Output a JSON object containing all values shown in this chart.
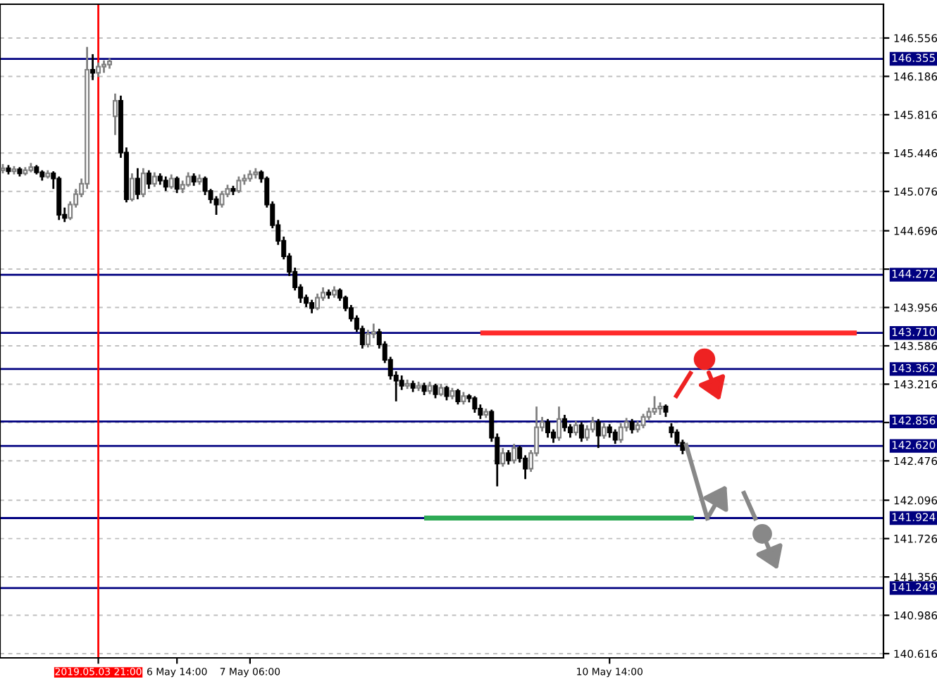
{
  "chart_data": {
    "type": "candlestick",
    "categories": [
      null,
      null,
      null,
      null,
      null,
      null,
      null,
      null,
      null,
      null,
      null,
      null,
      null,
      null,
      null,
      null,
      null,
      "2019.05.03 21:00",
      null,
      null,
      null,
      null,
      null,
      null,
      null,
      null,
      null,
      null,
      null,
      null,
      null,
      "6 May 14:00",
      null,
      null,
      null,
      null,
      null,
      null,
      null,
      null,
      null,
      null,
      null,
      null,
      "7 May 06:00",
      null,
      null,
      null,
      null,
      null,
      null,
      null,
      null,
      null,
      null,
      null,
      null,
      null,
      null,
      null,
      null,
      null,
      null,
      null,
      null,
      null,
      null,
      null,
      null,
      null,
      null,
      null,
      null,
      null,
      null,
      null,
      null,
      null,
      null,
      null,
      null,
      null,
      null,
      null,
      null,
      null,
      null,
      null,
      null,
      null,
      null,
      null,
      null,
      null,
      null,
      null,
      null,
      null,
      null,
      null,
      null,
      null,
      null,
      null,
      null,
      null,
      null,
      null,
      "10 May 14:00",
      null,
      null,
      null,
      null,
      null,
      null,
      null,
      null,
      null,
      null,
      null,
      null,
      null,
      null,
      null,
      null,
      null,
      null,
      null,
      null,
      null,
      null,
      null,
      null,
      null,
      null,
      null,
      null,
      null,
      null,
      null,
      null,
      null,
      null,
      null,
      null,
      null,
      null,
      null,
      null,
      null,
      null,
      null,
      null,
      null,
      null,
      null,
      null
    ],
    "ohlc": [
      [
        145.28,
        145.34,
        145.25,
        145.3
      ],
      [
        145.3,
        145.33,
        145.24,
        145.27
      ],
      [
        145.27,
        145.32,
        145.24,
        145.29
      ],
      [
        145.29,
        145.31,
        145.22,
        145.25
      ],
      [
        145.25,
        145.31,
        145.23,
        145.28
      ],
      [
        145.28,
        145.35,
        145.26,
        145.31
      ],
      [
        145.31,
        145.33,
        145.24,
        145.26
      ],
      [
        145.26,
        145.28,
        145.18,
        145.22
      ],
      [
        145.22,
        145.28,
        145.2,
        145.25
      ],
      [
        145.25,
        145.27,
        145.1,
        145.2
      ],
      [
        145.2,
        145.22,
        144.8,
        144.85
      ],
      [
        144.85,
        144.92,
        144.78,
        144.82
      ],
      [
        144.82,
        144.98,
        144.8,
        144.95
      ],
      [
        144.95,
        145.1,
        144.92,
        145.05
      ],
      [
        145.05,
        145.2,
        145.02,
        145.15
      ],
      [
        145.15,
        146.47,
        145.1,
        146.25
      ],
      [
        146.25,
        146.4,
        146.15,
        146.22
      ],
      [
        146.22,
        146.32,
        146.18,
        146.28
      ],
      [
        146.28,
        146.34,
        146.22,
        146.3
      ],
      [
        146.3,
        146.36,
        146.26,
        146.33
      ],
      [
        145.8,
        146.02,
        145.62,
        145.95
      ],
      [
        145.95,
        146.0,
        145.4,
        145.45
      ],
      [
        145.45,
        145.5,
        144.97,
        145.0
      ],
      [
        145.0,
        145.25,
        144.98,
        145.2
      ],
      [
        145.2,
        145.3,
        145.0,
        145.05
      ],
      [
        145.05,
        145.3,
        145.02,
        145.25
      ],
      [
        145.25,
        145.28,
        145.1,
        145.15
      ],
      [
        145.15,
        145.26,
        145.12,
        145.22
      ],
      [
        145.22,
        145.25,
        145.14,
        145.18
      ],
      [
        145.18,
        145.22,
        145.08,
        145.12
      ],
      [
        145.12,
        145.24,
        145.1,
        145.2
      ],
      [
        145.2,
        145.22,
        145.06,
        145.1
      ],
      [
        145.1,
        145.18,
        145.06,
        145.14
      ],
      [
        145.14,
        145.26,
        145.12,
        145.22
      ],
      [
        145.22,
        145.25,
        145.13,
        145.17
      ],
      [
        145.17,
        145.24,
        145.14,
        145.2
      ],
      [
        145.2,
        145.22,
        145.04,
        145.08
      ],
      [
        145.08,
        145.1,
        144.96,
        145.0
      ],
      [
        145.0,
        145.03,
        144.85,
        144.95
      ],
      [
        144.95,
        145.08,
        144.92,
        145.05
      ],
      [
        145.05,
        145.14,
        145.02,
        145.1
      ],
      [
        145.1,
        145.13,
        145.04,
        145.08
      ],
      [
        145.08,
        145.22,
        145.06,
        145.18
      ],
      [
        145.18,
        145.24,
        145.14,
        145.2
      ],
      [
        145.2,
        145.28,
        145.17,
        145.24
      ],
      [
        145.24,
        145.3,
        145.2,
        145.26
      ],
      [
        145.26,
        145.28,
        145.16,
        145.2
      ],
      [
        145.2,
        145.22,
        144.92,
        144.95
      ],
      [
        144.95,
        144.98,
        144.72,
        144.75
      ],
      [
        144.75,
        144.8,
        144.56,
        144.6
      ],
      [
        144.6,
        144.64,
        144.42,
        144.45
      ],
      [
        144.45,
        144.48,
        144.26,
        144.3
      ],
      [
        144.3,
        144.34,
        144.12,
        144.15
      ],
      [
        144.15,
        144.18,
        144.0,
        144.05
      ],
      [
        144.05,
        144.08,
        143.96,
        144.0
      ],
      [
        144.0,
        144.03,
        143.9,
        143.95
      ],
      [
        143.95,
        144.09,
        143.93,
        144.05
      ],
      [
        144.05,
        144.15,
        144.02,
        144.1
      ],
      [
        144.1,
        144.13,
        144.04,
        144.08
      ],
      [
        144.08,
        144.16,
        144.05,
        144.12
      ],
      [
        144.12,
        144.14,
        144.02,
        144.05
      ],
      [
        144.05,
        144.07,
        143.92,
        143.95
      ],
      [
        143.95,
        143.98,
        143.82,
        143.85
      ],
      [
        143.85,
        143.88,
        143.72,
        143.75
      ],
      [
        143.75,
        143.78,
        143.56,
        143.6
      ],
      [
        143.6,
        143.74,
        143.57,
        143.7
      ],
      [
        143.7,
        143.8,
        143.66,
        143.72
      ],
      [
        143.72,
        143.75,
        143.56,
        143.6
      ],
      [
        143.6,
        143.63,
        143.42,
        143.45
      ],
      [
        143.45,
        143.48,
        143.26,
        143.3
      ],
      [
        143.3,
        143.34,
        143.05,
        143.25
      ],
      [
        143.25,
        143.3,
        143.16,
        143.2
      ],
      [
        143.2,
        143.26,
        143.17,
        143.22
      ],
      [
        143.22,
        143.25,
        143.14,
        143.18
      ],
      [
        143.18,
        143.24,
        143.15,
        143.2
      ],
      [
        143.2,
        143.23,
        143.11,
        143.15
      ],
      [
        143.15,
        143.24,
        143.12,
        143.2
      ],
      [
        143.2,
        143.22,
        143.08,
        143.12
      ],
      [
        143.12,
        143.22,
        143.1,
        143.18
      ],
      [
        143.18,
        143.2,
        143.06,
        143.1
      ],
      [
        143.1,
        143.18,
        143.07,
        143.15
      ],
      [
        143.15,
        143.17,
        143.02,
        143.05
      ],
      [
        143.05,
        143.14,
        143.02,
        143.1
      ],
      [
        143.1,
        143.12,
        143.04,
        143.08
      ],
      [
        143.08,
        143.1,
        142.94,
        142.98
      ],
      [
        142.98,
        143.02,
        142.88,
        142.92
      ],
      [
        142.92,
        142.98,
        142.89,
        142.95
      ],
      [
        142.95,
        142.97,
        142.66,
        142.7
      ],
      [
        142.7,
        142.74,
        142.23,
        142.45
      ],
      [
        142.45,
        142.6,
        142.42,
        142.55
      ],
      [
        142.55,
        142.58,
        142.44,
        142.48
      ],
      [
        142.48,
        142.64,
        142.45,
        142.6
      ],
      [
        142.6,
        142.62,
        142.46,
        142.5
      ],
      [
        142.5,
        142.53,
        142.3,
        142.4
      ],
      [
        142.4,
        142.58,
        142.37,
        142.55
      ],
      [
        142.55,
        143.0,
        142.52,
        142.8
      ],
      [
        142.8,
        142.9,
        142.76,
        142.85
      ],
      [
        142.85,
        142.88,
        142.7,
        142.75
      ],
      [
        142.75,
        142.78,
        142.65,
        142.7
      ],
      [
        142.7,
        143.0,
        142.67,
        142.88
      ],
      [
        142.88,
        142.92,
        142.76,
        142.8
      ],
      [
        142.8,
        142.83,
        142.7,
        142.75
      ],
      [
        142.75,
        142.86,
        142.72,
        142.82
      ],
      [
        142.82,
        142.85,
        142.66,
        142.7
      ],
      [
        142.7,
        142.82,
        142.67,
        142.78
      ],
      [
        142.78,
        142.9,
        142.75,
        142.85
      ],
      [
        142.85,
        142.88,
        142.6,
        142.72
      ],
      [
        142.72,
        142.84,
        142.69,
        142.8
      ],
      [
        142.8,
        142.83,
        142.7,
        142.75
      ],
      [
        142.75,
        142.78,
        142.64,
        142.68
      ],
      [
        142.68,
        142.84,
        142.65,
        142.8
      ],
      [
        142.8,
        142.89,
        142.76,
        142.85
      ],
      [
        142.85,
        142.88,
        142.74,
        142.78
      ],
      [
        142.78,
        142.86,
        142.75,
        142.82
      ],
      [
        142.82,
        142.93,
        142.79,
        142.9
      ],
      [
        142.9,
        142.99,
        142.87,
        142.95
      ],
      [
        142.95,
        143.1,
        142.92,
        142.98
      ],
      [
        142.98,
        143.04,
        142.92,
        143.0
      ],
      [
        143.0,
        143.02,
        142.9,
        142.95
      ],
      [
        142.8,
        142.84,
        142.7,
        142.75
      ],
      [
        142.75,
        142.78,
        142.62,
        142.65
      ],
      [
        142.65,
        142.68,
        142.54,
        142.58
      ],
      null,
      null,
      null,
      null,
      null,
      null,
      null,
      null,
      null,
      null,
      null,
      null,
      null,
      null,
      null,
      null,
      null,
      null,
      null,
      null,
      null,
      null,
      null,
      null,
      null,
      null,
      null,
      null,
      null,
      null,
      null,
      null,
      null,
      null,
      null
    ],
    "series": [
      {
        "type": "line",
        "color": "#ff2a2a",
        "values": [
          null,
          null,
          null,
          null,
          null,
          null,
          null,
          null,
          null,
          null,
          null,
          null,
          null,
          null,
          null,
          null,
          null,
          null,
          null,
          null,
          null,
          null,
          null,
          null,
          null,
          null,
          null,
          null,
          null,
          null,
          null,
          null,
          null,
          null,
          null,
          null,
          null,
          null,
          null,
          null,
          null,
          null,
          null,
          null,
          null,
          null,
          null,
          null,
          null,
          null,
          null,
          null,
          null,
          null,
          null,
          null,
          null,
          null,
          null,
          null,
          null,
          null,
          null,
          null,
          null,
          null,
          null,
          null,
          null,
          null,
          null,
          null,
          null,
          null,
          null,
          null,
          null,
          null,
          null,
          null,
          null,
          null,
          null,
          null,
          null,
          143.71,
          143.71,
          143.71,
          143.71,
          143.71,
          143.71,
          143.71,
          143.71,
          143.71,
          143.71,
          143.71,
          143.71,
          143.71,
          143.71,
          143.71,
          143.71,
          143.71,
          143.71,
          143.71,
          143.71,
          143.71,
          143.71,
          143.71,
          143.71,
          143.71,
          143.71,
          143.71,
          143.71,
          143.71,
          143.71,
          143.71,
          143.71,
          143.71,
          143.71,
          143.71,
          143.71,
          143.71,
          143.71,
          143.71,
          143.71,
          143.71,
          143.71,
          143.71,
          143.71,
          143.71,
          143.71,
          143.71,
          143.71,
          143.71,
          143.71,
          143.71,
          143.71,
          143.71,
          143.71,
          143.71,
          143.71,
          143.71,
          143.71,
          143.71,
          143.71,
          143.71,
          143.71,
          143.71,
          143.71,
          143.71,
          143.71,
          143.71,
          143.71,
          null,
          null,
          null,
          null
        ]
      },
      {
        "type": "line",
        "color": "#2eaa55",
        "values": [
          null,
          null,
          null,
          null,
          null,
          null,
          null,
          null,
          null,
          null,
          null,
          null,
          null,
          null,
          null,
          null,
          null,
          null,
          null,
          null,
          null,
          null,
          null,
          null,
          null,
          null,
          null,
          null,
          null,
          null,
          null,
          null,
          null,
          null,
          null,
          null,
          null,
          null,
          null,
          null,
          null,
          null,
          null,
          null,
          null,
          null,
          null,
          null,
          null,
          null,
          null,
          null,
          null,
          null,
          null,
          null,
          null,
          null,
          null,
          null,
          null,
          null,
          null,
          null,
          null,
          null,
          null,
          null,
          null,
          null,
          null,
          null,
          null,
          null,
          null,
          141.924,
          141.924,
          141.924,
          141.924,
          141.924,
          141.924,
          141.924,
          141.924,
          141.924,
          141.924,
          141.924,
          141.924,
          141.924,
          141.924,
          141.924,
          141.924,
          141.924,
          141.924,
          141.924,
          141.924,
          141.924,
          141.924,
          141.924,
          141.924,
          141.924,
          141.924,
          141.924,
          141.924,
          141.924,
          141.924,
          141.924,
          141.924,
          141.924,
          141.924,
          141.924,
          141.924,
          141.924,
          141.924,
          141.924,
          141.924,
          141.924,
          141.924,
          141.924,
          141.924,
          141.924,
          141.924,
          141.924,
          141.924,
          141.924,
          null,
          null,
          null,
          null,
          null,
          null,
          null,
          null,
          null,
          null,
          null,
          null,
          null,
          null,
          null,
          null,
          null,
          null,
          null,
          null,
          null,
          null,
          null,
          null,
          null,
          null,
          null,
          null,
          null,
          null,
          null,
          null,
          null
        ]
      }
    ],
    "ylim": [
      140.575,
      146.882
    ],
    "yticks": [
      146.556,
      146.186,
      145.816,
      145.446,
      145.076,
      144.696,
      {
        "value": 144.326,
        "label": null
      },
      143.956,
      143.586,
      143.216,
      {
        "value": 142.846,
        "label": null
      },
      142.476,
      142.096,
      141.726,
      141.356,
      140.986,
      140.616
    ],
    "grid": "y",
    "ref_lines": [
      {
        "axis": "y",
        "value": 146.355,
        "label": "146.355",
        "color": "#000080"
      },
      {
        "axis": "y",
        "value": 144.272,
        "label": "144.272",
        "color": "#000080"
      },
      {
        "axis": "y",
        "value": 143.71,
        "label": "143.710",
        "color": "#000080"
      },
      {
        "axis": "y",
        "value": 143.362,
        "label": "143.362",
        "color": "#000080"
      },
      {
        "axis": "y",
        "value": 142.856,
        "label": "142.856",
        "color": "#000080"
      },
      {
        "axis": "y",
        "value": 142.62,
        "label": "142.620",
        "color": "#000080"
      },
      {
        "axis": "y",
        "value": 141.924,
        "label": "141.924",
        "color": "#000080"
      },
      {
        "axis": "y",
        "value": 141.249,
        "label": "141.249",
        "color": "#000080"
      },
      {
        "axis": "x",
        "value": "2019.05.03 21:00",
        "label": null,
        "color": "#ff0000"
      }
    ]
  }
}
